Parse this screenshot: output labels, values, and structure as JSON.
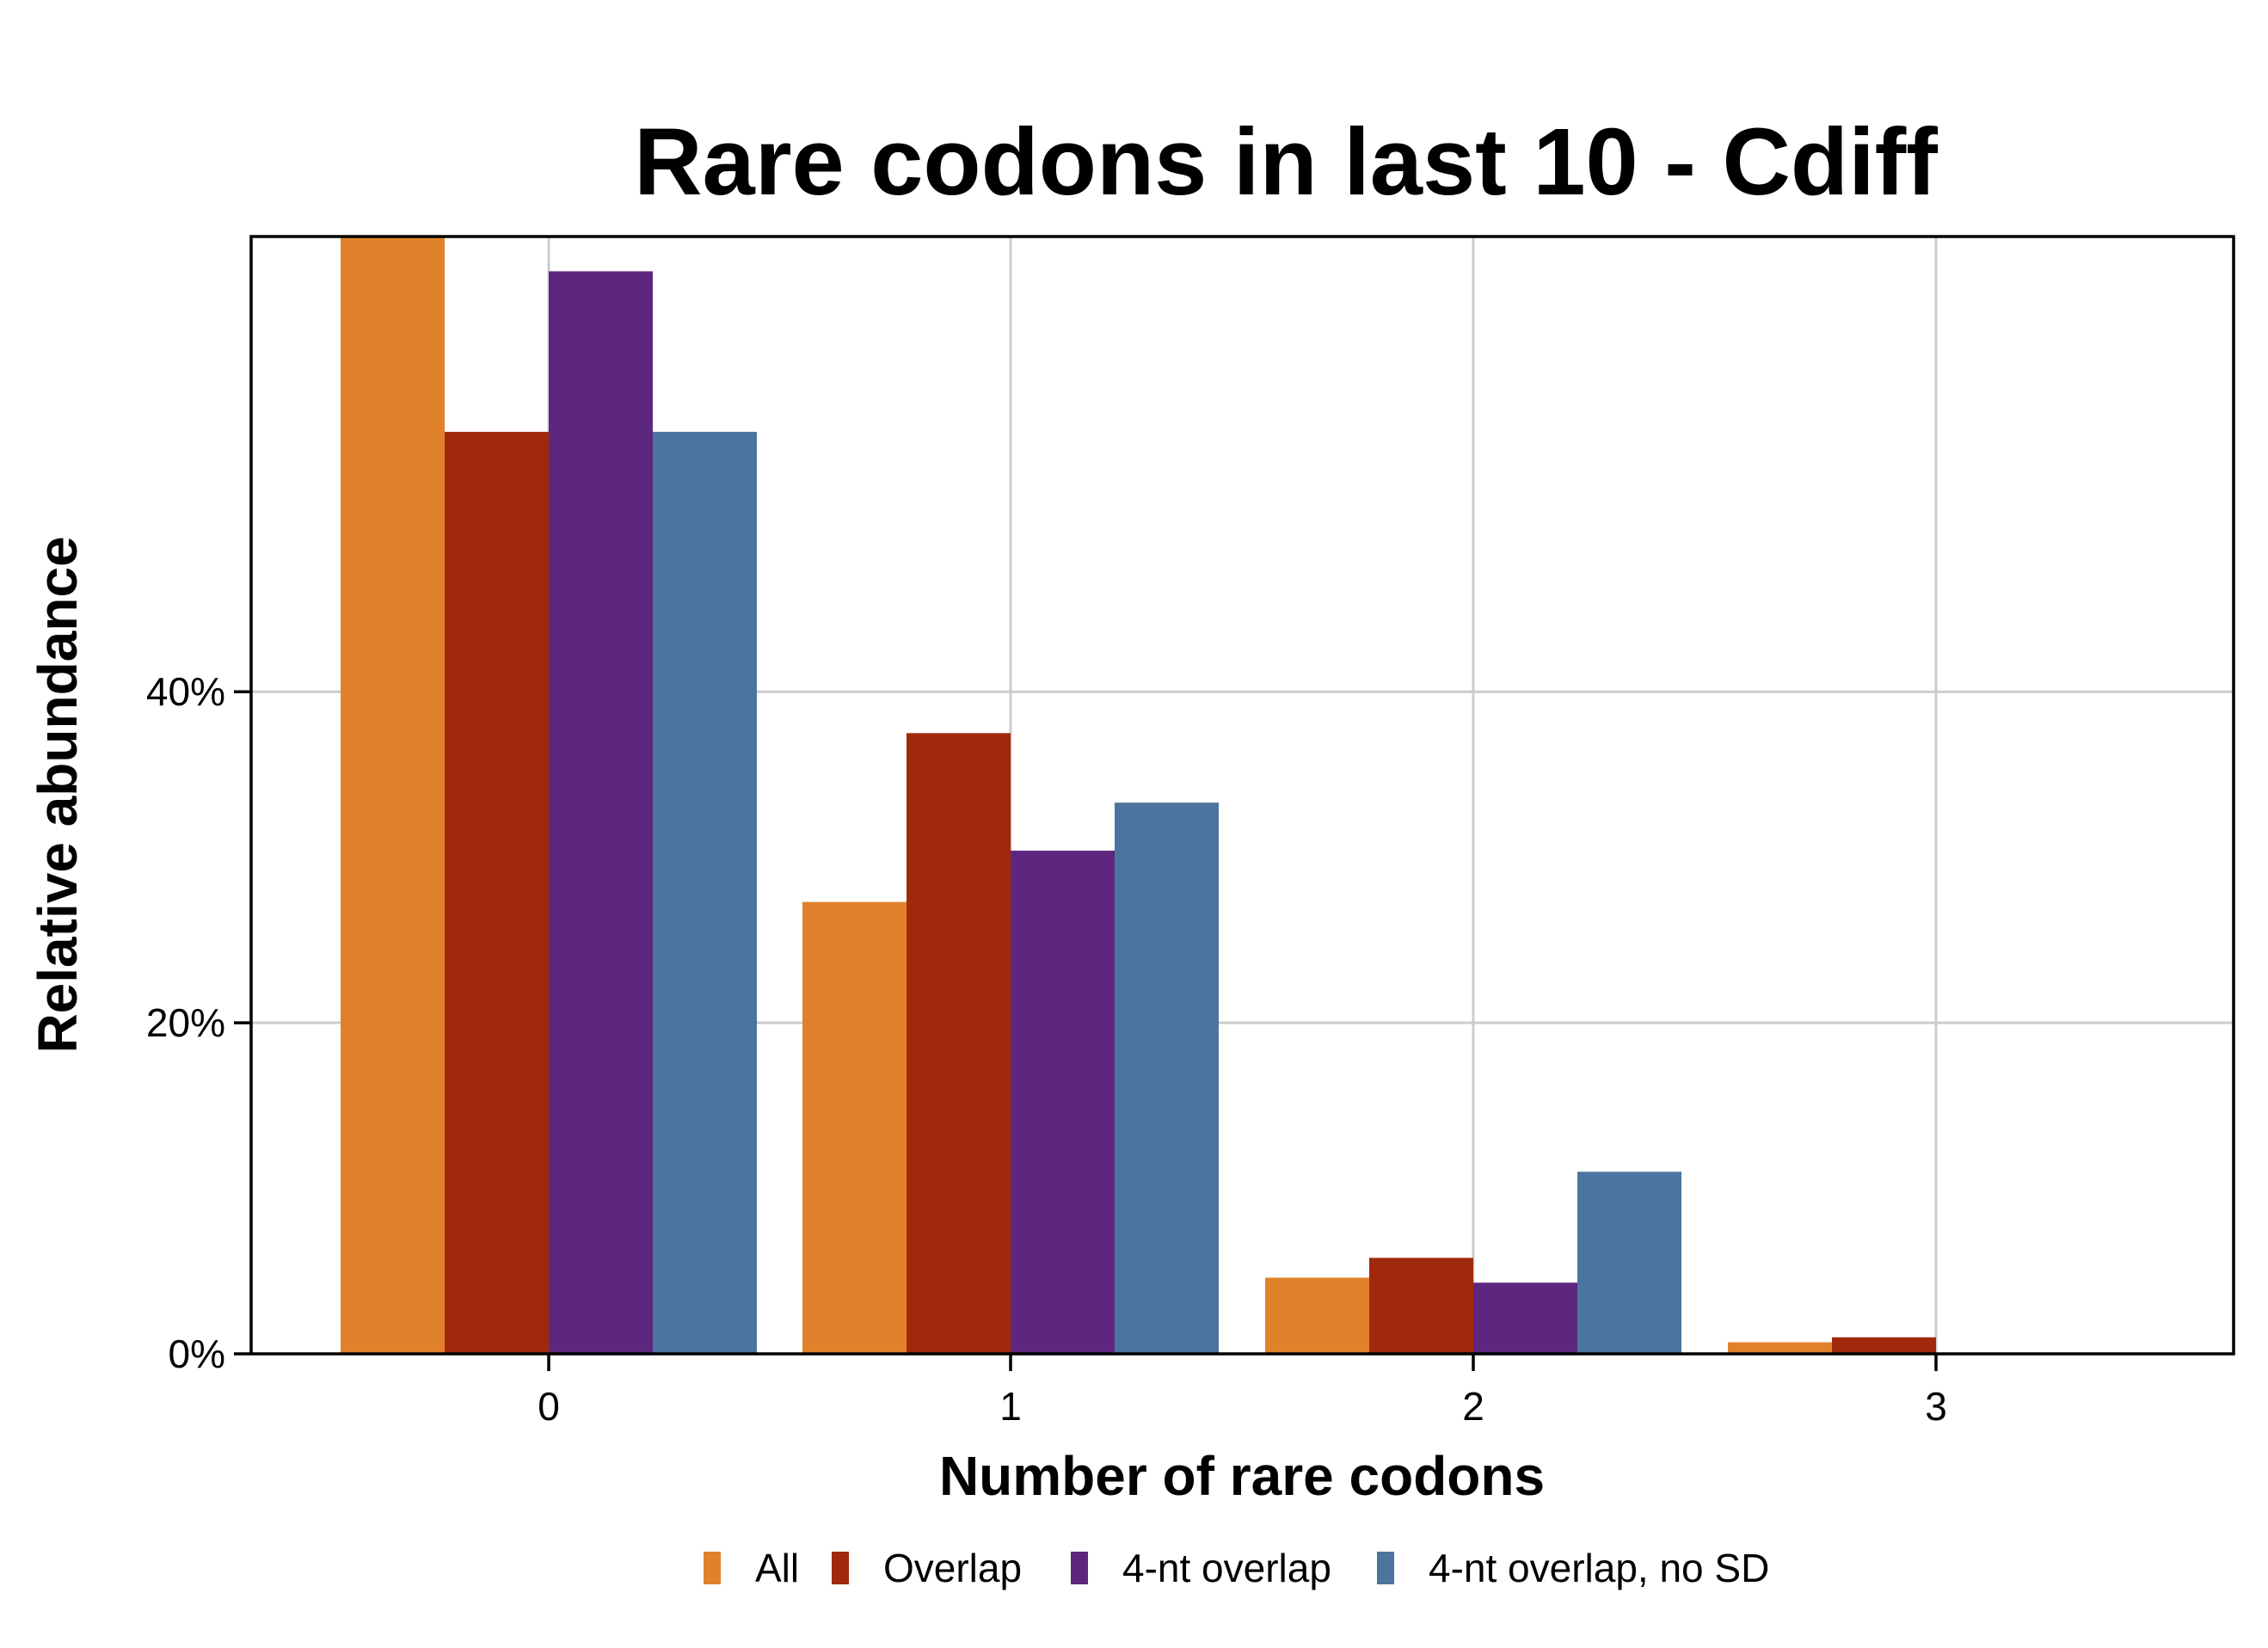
{
  "chart_data": {
    "type": "bar",
    "title": "Rare codons in last 10 - Cdiff",
    "xlabel": "Number of rare codons",
    "ylabel": "Relative abundance",
    "categories": [
      "0",
      "1",
      "2",
      "3"
    ],
    "y_ticks": [
      0,
      20,
      40
    ],
    "y_tick_labels": [
      "0%",
      "20%",
      "40%"
    ],
    "ylim": [
      0,
      67.5
    ],
    "grid": true,
    "legend_position": "bottom",
    "series": [
      {
        "name": "All",
        "color": "#E2812B",
        "values": [
          68.0,
          27.3,
          4.6,
          0.7
        ]
      },
      {
        "name": "Overlap",
        "color": "#A0290B",
        "values": [
          55.7,
          37.5,
          5.8,
          1.0
        ]
      },
      {
        "name": "4-nt overlap",
        "color": "#5E277F",
        "values": [
          65.4,
          30.4,
          4.3,
          0.0
        ]
      },
      {
        "name": "4-nt overlap, no SD",
        "color": "#4B759F",
        "values": [
          55.7,
          33.3,
          11.0,
          0.0
        ]
      }
    ]
  }
}
